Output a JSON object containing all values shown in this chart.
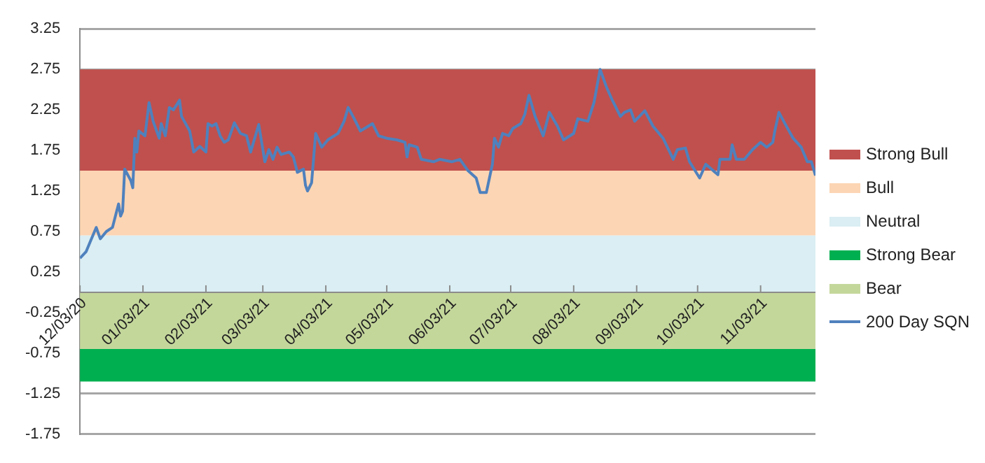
{
  "chart_data": {
    "type": "line",
    "xlim": [
      "2020-12-03",
      "2021-11-30"
    ],
    "xticks": [
      {
        "value": "2020-12-03",
        "label": "12/03/20"
      },
      {
        "value": "2021-01-03",
        "label": "01/03/21"
      },
      {
        "value": "2021-02-03",
        "label": "02/03/21"
      },
      {
        "value": "2021-03-03",
        "label": "03/03/21"
      },
      {
        "value": "2021-04-03",
        "label": "04/03/21"
      },
      {
        "value": "2021-05-03",
        "label": "05/03/21"
      },
      {
        "value": "2021-06-03",
        "label": "06/03/21"
      },
      {
        "value": "2021-07-03",
        "label": "07/03/21"
      },
      {
        "value": "2021-08-03",
        "label": "08/03/21"
      },
      {
        "value": "2021-09-03",
        "label": "09/03/21"
      },
      {
        "value": "2021-10-03",
        "label": "10/03/21"
      },
      {
        "value": "2021-11-03",
        "label": "11/03/21"
      }
    ],
    "ylim": [
      -1.75,
      3.25
    ],
    "yticks": [
      -1.75,
      -1.25,
      -0.75,
      -0.25,
      0.25,
      0.75,
      1.25,
      1.75,
      2.25,
      2.75,
      3.25
    ],
    "grid": "y",
    "legend": "right",
    "bands": [
      {
        "axis": "y",
        "from": 1.5,
        "to": 2.75,
        "label": "Strong Bull",
        "color": "#c0504d"
      },
      {
        "axis": "y",
        "from": 0.7,
        "to": 1.5,
        "label": "Bull",
        "color": "#fcd5b4"
      },
      {
        "axis": "y",
        "from": 0,
        "to": 0.7,
        "label": "Neutral",
        "color": "#daeef3"
      },
      {
        "axis": "y",
        "from": -1.1,
        "to": -0.7,
        "label": "Strong Bear",
        "color": "#00b050"
      },
      {
        "axis": "y",
        "from": -0.7,
        "to": 0,
        "label": "Bear",
        "color": "#c4d79b"
      }
    ],
    "x": [
      "2020-12-03",
      "2020-12-06",
      "2020-12-08",
      "2020-12-11",
      "2020-12-13",
      "2020-12-16",
      "2020-12-19",
      "2020-12-22",
      "2020-12-23",
      "2020-12-24",
      "2020-12-25",
      "2020-12-28",
      "2020-12-29",
      "2020-12-30",
      "2020-12-31",
      "2021-01-01",
      "2021-01-04",
      "2021-01-06",
      "2021-01-08",
      "2021-01-11",
      "2021-01-12",
      "2021-01-14",
      "2021-01-16",
      "2021-01-18",
      "2021-01-21",
      "2021-01-22",
      "2021-01-26",
      "2021-01-28",
      "2021-01-31",
      "2021-02-03",
      "2021-02-04",
      "2021-02-06",
      "2021-02-08",
      "2021-02-10",
      "2021-02-12",
      "2021-02-14",
      "2021-02-17",
      "2021-02-20",
      "2021-02-23",
      "2021-02-25",
      "2021-03-01",
      "2021-03-04",
      "2021-03-06",
      "2021-03-08",
      "2021-03-10",
      "2021-03-12",
      "2021-03-16",
      "2021-03-18",
      "2021-03-20",
      "2021-03-23",
      "2021-03-24",
      "2021-03-25",
      "2021-03-27",
      "2021-03-29",
      "2021-04-01",
      "2021-04-04",
      "2021-04-09",
      "2021-04-12",
      "2021-04-14",
      "2021-04-17",
      "2021-04-20",
      "2021-04-26",
      "2021-04-29",
      "2021-05-03",
      "2021-05-08",
      "2021-05-12",
      "2021-05-13",
      "2021-05-14",
      "2021-05-18",
      "2021-05-20",
      "2021-05-26",
      "2021-05-29",
      "2021-06-04",
      "2021-06-08",
      "2021-06-12",
      "2021-06-16",
      "2021-06-18",
      "2021-06-21",
      "2021-06-24",
      "2021-06-25",
      "2021-06-27",
      "2021-06-29",
      "2021-07-02",
      "2021-07-04",
      "2021-07-08",
      "2021-07-10",
      "2021-07-12",
      "2021-07-15",
      "2021-07-19",
      "2021-07-22",
      "2021-07-26",
      "2021-07-29",
      "2021-08-03",
      "2021-08-05",
      "2021-08-10",
      "2021-08-13",
      "2021-08-16",
      "2021-08-19",
      "2021-08-22",
      "2021-08-26",
      "2021-08-28",
      "2021-08-31",
      "2021-09-02",
      "2021-09-07",
      "2021-09-11",
      "2021-09-16",
      "2021-09-21",
      "2021-09-23",
      "2021-09-27",
      "2021-09-29",
      "2021-10-04",
      "2021-10-07",
      "2021-10-13",
      "2021-10-14",
      "2021-10-19",
      "2021-10-20",
      "2021-10-22",
      "2021-10-26",
      "2021-10-30",
      "2021-11-03",
      "2021-11-06",
      "2021-11-09",
      "2021-11-10",
      "2021-11-12",
      "2021-11-15",
      "2021-11-19",
      "2021-11-23",
      "2021-11-26",
      "2021-11-28",
      "2021-11-30"
    ],
    "series": [
      {
        "name": "200 Day SQN",
        "color": "#4f81bd",
        "values": [
          0.42,
          0.5,
          0.62,
          0.8,
          0.66,
          0.75,
          0.8,
          1.09,
          0.94,
          1.0,
          1.52,
          1.38,
          1.29,
          1.9,
          1.73,
          1.99,
          1.93,
          2.34,
          2.11,
          1.9,
          2.08,
          1.93,
          2.28,
          2.25,
          2.37,
          2.17,
          1.99,
          1.73,
          1.8,
          1.73,
          2.08,
          2.05,
          2.08,
          1.93,
          1.85,
          1.88,
          2.09,
          1.96,
          1.93,
          1.73,
          2.07,
          1.61,
          1.76,
          1.64,
          1.79,
          1.7,
          1.73,
          1.67,
          1.48,
          1.52,
          1.32,
          1.25,
          1.35,
          1.96,
          1.79,
          1.88,
          1.96,
          2.11,
          2.28,
          2.14,
          1.99,
          2.08,
          1.93,
          1.9,
          1.88,
          1.85,
          1.67,
          1.82,
          1.79,
          1.64,
          1.61,
          1.64,
          1.61,
          1.64,
          1.5,
          1.41,
          1.23,
          1.23,
          1.58,
          1.9,
          1.79,
          1.96,
          1.93,
          2.02,
          2.08,
          2.2,
          2.43,
          2.17,
          1.93,
          2.22,
          2.05,
          1.88,
          1.96,
          2.14,
          2.11,
          2.34,
          2.75,
          2.54,
          2.37,
          2.17,
          2.22,
          2.25,
          2.11,
          2.24,
          2.05,
          1.9,
          1.64,
          1.76,
          1.78,
          1.61,
          1.41,
          1.58,
          1.45,
          1.64,
          1.64,
          1.82,
          1.64,
          1.64,
          1.76,
          1.85,
          1.79,
          1.85,
          1.99,
          2.22,
          2.08,
          1.9,
          1.79,
          1.61,
          1.61,
          1.44
        ]
      }
    ]
  }
}
